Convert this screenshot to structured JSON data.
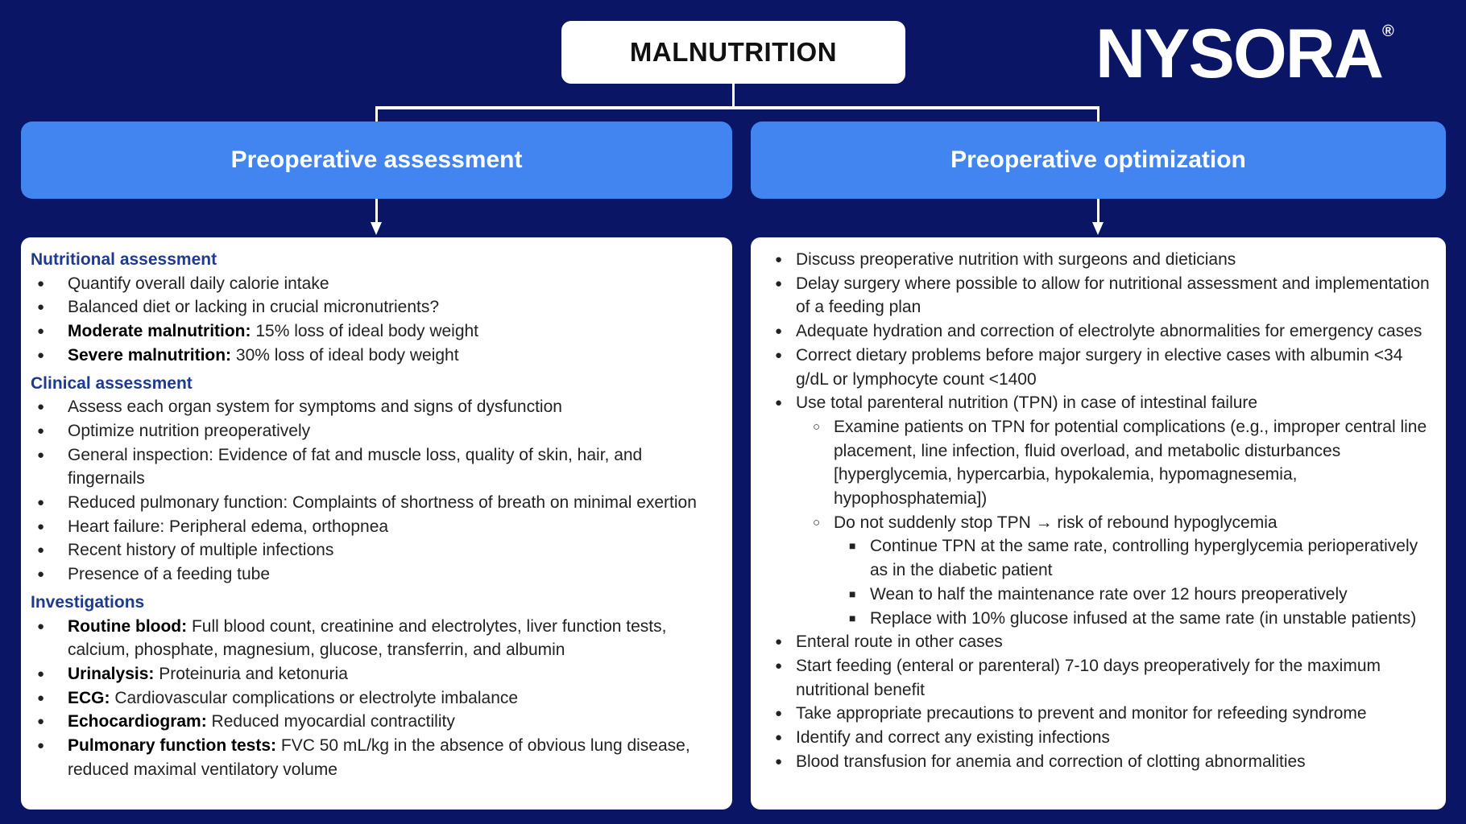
{
  "title": "MALNUTRITION",
  "logo": {
    "text": "NYSORA",
    "mark": "®"
  },
  "watermark": "NYSORA©",
  "colors": {
    "background": "#0b1565",
    "header": "#4285f0",
    "section_heading": "#1e3a8e"
  },
  "left": {
    "header": "Preoperative assessment",
    "sections": [
      {
        "heading": "Nutritional assessment",
        "items": [
          {
            "text": "Quantify overall daily calorie intake"
          },
          {
            "text": "Balanced diet or lacking in crucial micronutrients?"
          },
          {
            "bold": "Moderate malnutrition:",
            "text": " 15% loss of ideal body weight"
          },
          {
            "bold": "Severe malnutrition:",
            "text": " 30% loss of ideal body weight"
          }
        ]
      },
      {
        "heading": "Clinical assessment",
        "items": [
          {
            "text": "Assess each organ system for symptoms and signs of dysfunction"
          },
          {
            "text": "Optimize nutrition preoperatively"
          },
          {
            "text": "General inspection: Evidence of fat and muscle loss, quality of skin, hair, and fingernails"
          },
          {
            "text": "Reduced pulmonary function: Complaints of shortness of breath on minimal exertion"
          },
          {
            "text": "Heart failure: Peripheral edema, orthopnea"
          },
          {
            "text": "Recent history of multiple infections"
          },
          {
            "text": "Presence of a feeding tube"
          }
        ]
      },
      {
        "heading": "Investigations",
        "items": [
          {
            "bold": "Routine blood:",
            "text": " Full blood count, creatinine and electrolytes, liver function tests, calcium, phosphate, magnesium, glucose, transferrin, and albumin"
          },
          {
            "bold": "Urinalysis:",
            "text": " Proteinuria and ketonuria"
          },
          {
            "bold": "ECG:",
            "text": " Cardiovascular complications or electrolyte imbalance"
          },
          {
            "bold": "Echocardiogram:",
            "text": " Reduced myocardial contractility"
          },
          {
            "bold": "Pulmonary function tests:",
            "text": " FVC 50 mL/kg in the absence of obvious lung disease, reduced maximal ventilatory volume"
          }
        ]
      }
    ]
  },
  "right": {
    "header": "Preoperative optimization",
    "items": [
      {
        "level": 1,
        "text": "Discuss preoperative nutrition with surgeons and dieticians"
      },
      {
        "level": 1,
        "text": "Delay surgery where possible to allow for nutritional assessment and implementation of a feeding plan"
      },
      {
        "level": 1,
        "text": "Adequate hydration and correction of electrolyte abnormalities for emergency cases"
      },
      {
        "level": 1,
        "text": "Correct dietary problems before major surgery in elective cases with albumin <34 g/dL or lymphocyte count <1400"
      },
      {
        "level": 1,
        "text": "Use total parenteral nutrition (TPN) in case of intestinal failure"
      },
      {
        "level": 2,
        "text": "Examine patients on TPN for potential complications (e.g., improper central line placement, line infection, fluid overload, and metabolic disturbances [hyperglycemia, hypercarbia, hypokalemia, hypomagnesemia, hypophosphatemia])"
      },
      {
        "level": 2,
        "text": "Do not suddenly stop TPN → risk of rebound hypoglycemia"
      },
      {
        "level": 3,
        "text": "Continue TPN at the same rate, controlling hyperglycemia perioperatively as in the diabetic patient"
      },
      {
        "level": 3,
        "text": "Wean to half the maintenance rate over 12 hours preoperatively"
      },
      {
        "level": 3,
        "text": "Replace with 10% glucose infused at the same rate (in unstable patients)"
      },
      {
        "level": 1,
        "text": "Enteral route in other cases"
      },
      {
        "level": 1,
        "text": "Start feeding (enteral or parenteral) 7-10 days preoperatively for the maximum nutritional benefit"
      },
      {
        "level": 1,
        "text": "Take appropriate precautions to prevent and monitor for refeeding syndrome"
      },
      {
        "level": 1,
        "text": "Identify and correct any existing infections"
      },
      {
        "level": 1,
        "text": "Blood transfusion for anemia and correction of clotting abnormalities"
      }
    ]
  }
}
